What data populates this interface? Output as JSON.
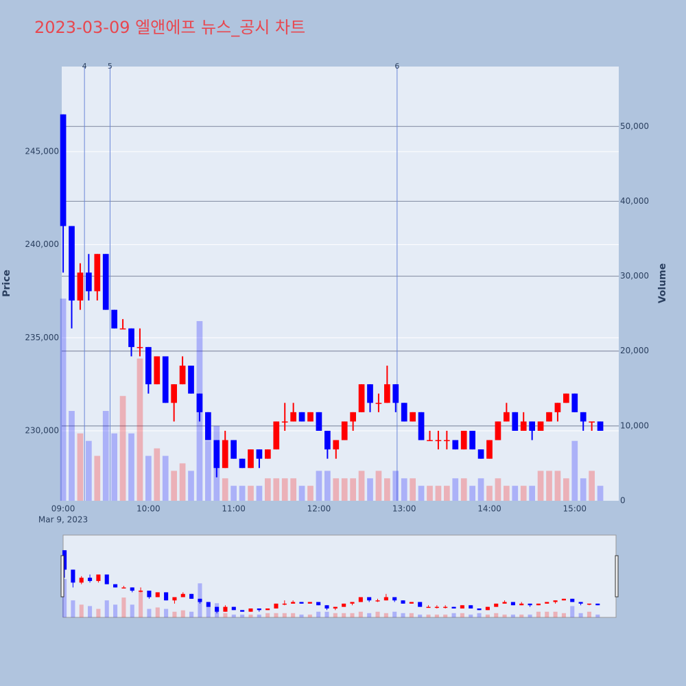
{
  "chart_data": {
    "type": "candlestick",
    "title": "2023-03-09 엘앤에프 뉴스_공시 차트",
    "ylabel": "Price",
    "y2label": "Volume",
    "x_sublabel": "Mar 9, 2023",
    "increasing_color": "#ff0000",
    "decreasing_color": "#0000ff",
    "x": [
      "2023-03-09 09:00",
      "2023-03-09 09:06",
      "2023-03-09 09:12",
      "2023-03-09 09:18",
      "2023-03-09 09:24",
      "2023-03-09 09:30",
      "2023-03-09 09:36",
      "2023-03-09 09:42",
      "2023-03-09 09:48",
      "2023-03-09 09:54",
      "2023-03-09 10:00",
      "2023-03-09 10:06",
      "2023-03-09 10:12",
      "2023-03-09 10:18",
      "2023-03-09 10:24",
      "2023-03-09 10:30",
      "2023-03-09 10:36",
      "2023-03-09 10:42",
      "2023-03-09 10:48",
      "2023-03-09 10:54",
      "2023-03-09 11:00",
      "2023-03-09 11:06",
      "2023-03-09 11:12",
      "2023-03-09 11:18",
      "2023-03-09 11:24",
      "2023-03-09 11:30",
      "2023-03-09 11:36",
      "2023-03-09 11:42",
      "2023-03-09 11:48",
      "2023-03-09 11:54",
      "2023-03-09 12:00",
      "2023-03-09 12:06",
      "2023-03-09 12:12",
      "2023-03-09 12:18",
      "2023-03-09 12:24",
      "2023-03-09 12:30",
      "2023-03-09 12:36",
      "2023-03-09 12:42",
      "2023-03-09 12:48",
      "2023-03-09 12:54",
      "2023-03-09 13:00",
      "2023-03-09 13:06",
      "2023-03-09 13:12",
      "2023-03-09 13:18",
      "2023-03-09 13:24",
      "2023-03-09 13:30",
      "2023-03-09 13:36",
      "2023-03-09 13:42",
      "2023-03-09 13:48",
      "2023-03-09 13:54",
      "2023-03-09 14:00",
      "2023-03-09 14:06",
      "2023-03-09 14:12",
      "2023-03-09 14:18",
      "2023-03-09 14:24",
      "2023-03-09 14:30",
      "2023-03-09 14:36",
      "2023-03-09 14:42",
      "2023-03-09 14:48",
      "2023-03-09 14:54",
      "2023-03-09 15:00",
      "2023-03-09 15:06",
      "2023-03-09 15:12",
      "2023-03-09 15:18"
    ],
    "open": [
      247000,
      241000,
      237000,
      238500,
      237500,
      239500,
      236500,
      235500,
      235500,
      234500,
      234500,
      232500,
      234000,
      231500,
      232500,
      233500,
      232000,
      231000,
      229500,
      228000,
      229500,
      228500,
      228000,
      229000,
      228500,
      229000,
      230500,
      230500,
      231000,
      230500,
      231000,
      230000,
      229000,
      229500,
      230500,
      231000,
      232500,
      231500,
      231500,
      232500,
      231500,
      230500,
      231000,
      229500,
      229500,
      229500,
      229500,
      229000,
      230000,
      229000,
      228500,
      229500,
      230500,
      231000,
      230000,
      230500,
      230000,
      230500,
      231000,
      231500,
      232000,
      231000,
      230500,
      230500
    ],
    "high": [
      247000,
      241000,
      239000,
      239500,
      239500,
      239500,
      236500,
      236000,
      235500,
      235500,
      234500,
      234000,
      234000,
      232500,
      234000,
      233500,
      232000,
      231000,
      229500,
      230000,
      229500,
      228500,
      229000,
      229000,
      229000,
      230500,
      231500,
      231500,
      231000,
      231000,
      231000,
      230000,
      229500,
      230500,
      231000,
      232500,
      232500,
      232000,
      233500,
      232500,
      231500,
      231000,
      231000,
      230000,
      230000,
      230000,
      229500,
      230000,
      230000,
      229000,
      229500,
      230500,
      231500,
      231000,
      231000,
      230500,
      230500,
      231000,
      231500,
      232000,
      232000,
      231000,
      230500,
      230500
    ],
    "low": [
      238500,
      235500,
      236500,
      237000,
      237000,
      236500,
      235500,
      235500,
      234000,
      234000,
      232000,
      232500,
      231500,
      230500,
      232500,
      232000,
      230500,
      229500,
      227500,
      228000,
      228500,
      228000,
      228000,
      228000,
      228500,
      229000,
      230000,
      230500,
      230500,
      230500,
      230000,
      228500,
      228500,
      229500,
      230000,
      231000,
      231000,
      231000,
      231500,
      231000,
      230500,
      230500,
      229500,
      229500,
      229000,
      229000,
      229000,
      229000,
      229000,
      228500,
      228500,
      229500,
      230500,
      230000,
      230000,
      229500,
      230000,
      230500,
      230500,
      231500,
      231000,
      230000,
      230000,
      230000
    ],
    "close": [
      241000,
      237000,
      238500,
      237500,
      239500,
      236500,
      235500,
      235500,
      234500,
      234500,
      232500,
      234000,
      231500,
      232500,
      233500,
      232000,
      231000,
      229500,
      228000,
      229500,
      228500,
      228000,
      229000,
      228500,
      229000,
      230500,
      230500,
      231000,
      230500,
      231000,
      230000,
      229000,
      229500,
      230500,
      231000,
      232500,
      231500,
      231500,
      232500,
      231500,
      230500,
      231000,
      229500,
      229500,
      229500,
      229500,
      229000,
      230000,
      229000,
      228500,
      229500,
      230500,
      231000,
      230000,
      230500,
      230000,
      230500,
      231000,
      231500,
      232000,
      231000,
      230500,
      230500,
      230000
    ],
    "volume": [
      27000,
      12000,
      9000,
      8000,
      6000,
      12000,
      9000,
      14000,
      9000,
      19000,
      6000,
      7000,
      6000,
      4000,
      5000,
      4000,
      24000,
      8000,
      10000,
      3000,
      2000,
      2000,
      2000,
      2000,
      3000,
      3000,
      3000,
      3000,
      2000,
      2000,
      4000,
      4000,
      3000,
      3000,
      3000,
      4000,
      3000,
      4000,
      3000,
      4000,
      3000,
      3000,
      2000,
      2000,
      2000,
      2000,
      3000,
      3000,
      2000,
      3000,
      2000,
      3000,
      2000,
      2000,
      2000,
      2000,
      4000,
      4000,
      4000,
      3000,
      8000,
      3000,
      4000,
      2000
    ],
    "xlim": [
      "2023-03-09 08:59",
      "2023-03-09 15:31"
    ],
    "xticks": [
      {
        "value": "2023-03-09 09:00",
        "label": "09:00"
      },
      {
        "value": "2023-03-09 10:00",
        "label": "10:00"
      },
      {
        "value": "2023-03-09 11:00",
        "label": "11:00"
      },
      {
        "value": "2023-03-09 12:00",
        "label": "12:00"
      },
      {
        "value": "2023-03-09 13:00",
        "label": "13:00"
      },
      {
        "value": "2023-03-09 14:00",
        "label": "14:00"
      },
      {
        "value": "2023-03-09 15:00",
        "label": "15:00"
      }
    ],
    "ylim": [
      226240,
      249570
    ],
    "yticks": [
      {
        "value": 230000,
        "label": "230,000"
      },
      {
        "value": 235000,
        "label": "235,000"
      },
      {
        "value": 240000,
        "label": "240,000"
      },
      {
        "value": 245000,
        "label": "245,000"
      }
    ],
    "y2lim": [
      0,
      58000
    ],
    "y2ticks": [
      0,
      {
        "value": 10000,
        "label": "10,000"
      },
      {
        "value": 20000,
        "label": "20,000"
      },
      {
        "value": 30000,
        "label": "30,000"
      },
      {
        "value": 40000,
        "label": "40,000"
      },
      {
        "value": 50000,
        "label": "50,000"
      }
    ],
    "annotations": [
      {
        "x": "2023-03-09 09:15",
        "text": "4"
      },
      {
        "x": "2023-03-09 09:33",
        "text": "5"
      },
      {
        "x": "2023-03-09 12:55",
        "text": "6"
      }
    ]
  }
}
